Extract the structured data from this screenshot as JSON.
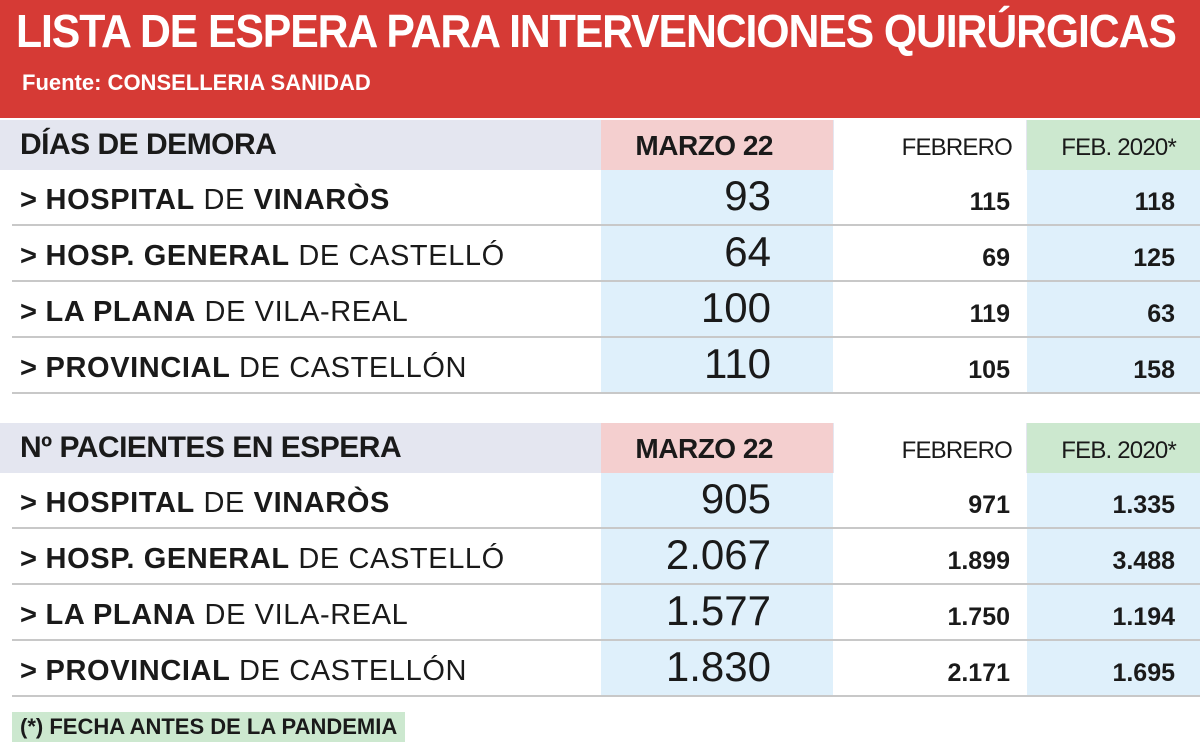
{
  "title": "LISTA DE ESPERA PARA INTERVENCIONES QUIRÚRGICAS",
  "source": "Fuente: CONSELLERIA SANIDAD",
  "columns": {
    "marzo": "MARZO 22",
    "febrero": "FEBRERO",
    "feb2020": "FEB. 2020*"
  },
  "sections": [
    {
      "title": "DÍAS DE DEMORA",
      "rows": [
        {
          "name_bold": "HOSPITAL",
          "name_mid": " DE ",
          "name_bold2": "VINARÒS",
          "name_rest": "",
          "marzo": "93",
          "febrero": "115",
          "feb2020": "118"
        },
        {
          "name_bold": "HOSP. GENERAL",
          "name_mid": " DE CASTELLÓ",
          "name_bold2": "",
          "name_rest": "",
          "marzo": "64",
          "febrero": "69",
          "feb2020": "125"
        },
        {
          "name_bold": "LA PLANA",
          "name_mid": " DE VILA-REAL",
          "name_bold2": "",
          "name_rest": "",
          "marzo": "100",
          "febrero": "119",
          "feb2020": "63"
        },
        {
          "name_bold": "PROVINCIAL",
          "name_mid": " DE CASTELLÓN",
          "name_bold2": "",
          "name_rest": "",
          "marzo": "110",
          "febrero": "105",
          "feb2020": "158"
        }
      ]
    },
    {
      "title": "Nº PACIENTES EN ESPERA",
      "rows": [
        {
          "name_bold": "HOSPITAL",
          "name_mid": " DE ",
          "name_bold2": "VINARÒS",
          "name_rest": "",
          "marzo": "905",
          "febrero": "971",
          "feb2020": "1.335"
        },
        {
          "name_bold": "HOSP. GENERAL",
          "name_mid": " DE CASTELLÓ",
          "name_bold2": "",
          "name_rest": "",
          "marzo": "2.067",
          "febrero": "1.899",
          "feb2020": "3.488"
        },
        {
          "name_bold": "LA PLANA",
          "name_mid": " DE VILA-REAL",
          "name_bold2": "",
          "name_rest": "",
          "marzo": "1.577",
          "febrero": "1.750",
          "feb2020": "1.194"
        },
        {
          "name_bold": "PROVINCIAL",
          "name_mid": " DE CASTELLÓN",
          "name_bold2": "",
          "name_rest": "",
          "marzo": "1.830",
          "febrero": "2.171",
          "feb2020": "1.695"
        }
      ]
    }
  ],
  "footnote": "(*) FECHA ANTES DE LA PANDEMIA"
}
